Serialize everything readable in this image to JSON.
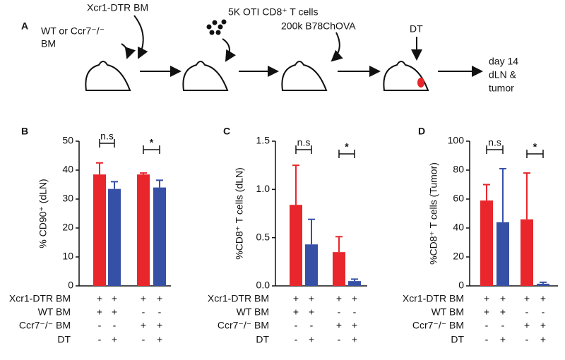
{
  "panel_a": {
    "panel": "A",
    "xcr1_label": "Xcr1-DTR BM",
    "wt_label_1": "WT or Ccr7⁻/⁻",
    "wt_label_2": "BM",
    "cells_label": "5K OTI CD8⁺ T cells",
    "tumor_label": "200k B78ChOVA",
    "dt_label": "DT",
    "end_label_1": "day 14",
    "end_label_2": "dLN &",
    "end_label_3": "tumor"
  },
  "chart_data": [
    {
      "type": "bar",
      "panel": "B",
      "y_label": "% CD90⁺ (dLN)",
      "ylim": [
        0,
        50
      ],
      "yticks": [
        0,
        10,
        20,
        30,
        40,
        50
      ],
      "values": [
        38.5,
        33.5,
        38.5,
        34
      ],
      "errors": [
        4,
        2.5,
        0.5,
        2.5
      ],
      "colors": [
        "#e8262b",
        "#3650a5",
        "#e8262b",
        "#3650a5"
      ],
      "annotations": [
        "n.s",
        "*"
      ],
      "conditions": [
        {
          "label": "Xcr1-DTR BM",
          "signs": [
            "+",
            "+",
            "+",
            "+"
          ]
        },
        {
          "label": "WT BM",
          "signs": [
            "+",
            "+",
            "-",
            "-"
          ]
        },
        {
          "label": "Ccr7⁻/⁻ BM",
          "signs": [
            "-",
            "-",
            "+",
            "+"
          ]
        },
        {
          "label": "DT",
          "signs": [
            "-",
            "+",
            "-",
            "+"
          ]
        }
      ]
    },
    {
      "type": "bar",
      "panel": "C",
      "y_label": "%CD8⁺ T cells (dLN)",
      "ylim": [
        0,
        1.5
      ],
      "yticks": [
        {
          "value": 0,
          "label": "0.0"
        },
        0.5,
        {
          "value": 1,
          "label": "1.0"
        },
        1.5
      ],
      "values": [
        0.84,
        0.43,
        0.35,
        0.05
      ],
      "errors": [
        0.41,
        0.26,
        0.16,
        0.02
      ],
      "colors": [
        "#e8262b",
        "#3650a5",
        "#e8262b",
        "#3650a5"
      ],
      "annotations": [
        "n.s",
        "*"
      ],
      "conditions": [
        {
          "label": "Xcr1-DTR BM",
          "signs": [
            "+",
            "+",
            "+",
            "+"
          ]
        },
        {
          "label": "WT BM",
          "signs": [
            "+",
            "+",
            "-",
            "-"
          ]
        },
        {
          "label": "Ccr7⁻/⁻ BM",
          "signs": [
            "-",
            "-",
            "+",
            "+"
          ]
        },
        {
          "label": "DT",
          "signs": [
            "-",
            "+",
            "-",
            "+"
          ]
        }
      ]
    },
    {
      "type": "bar",
      "panel": "D",
      "y_label": "%CD8⁺ T cells (Tumor)",
      "ylim": [
        0,
        100
      ],
      "yticks": [
        0,
        20,
        40,
        60,
        80,
        100
      ],
      "values": [
        59,
        44,
        46,
        1.5
      ],
      "errors": [
        11,
        37,
        32,
        1
      ],
      "colors": [
        "#e8262b",
        "#3650a5",
        "#e8262b",
        "#3650a5"
      ],
      "annotations": [
        "n.s",
        "*"
      ],
      "conditions": [
        {
          "label": "Xcr1-DTR BM",
          "signs": [
            "+",
            "+",
            "+",
            "+"
          ]
        },
        {
          "label": "WT BM",
          "signs": [
            "+",
            "+",
            "-",
            "-"
          ]
        },
        {
          "label": "Ccr7⁻/⁻ BM",
          "signs": [
            "-",
            "-",
            "+",
            "+"
          ]
        },
        {
          "label": "DT",
          "signs": [
            "-",
            "+",
            "-",
            "+"
          ]
        }
      ]
    }
  ]
}
